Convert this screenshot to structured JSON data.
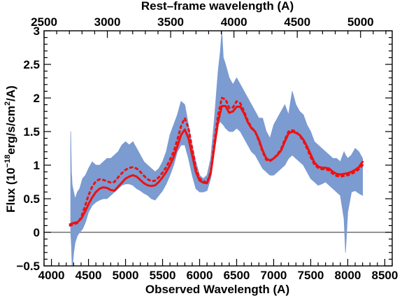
{
  "chart_data": {
    "type": "line",
    "title": "",
    "xlabel": "Observed Wavelength (A)",
    "x2label": "Rest–frame wavelength (A)",
    "ylabel_parts": {
      "pre": "Flux (10",
      "exp": "−18",
      "mid": "erg/s/cm",
      "exp2": "2",
      "post": "/A)"
    },
    "xlim": [
      3900,
      8600
    ],
    "ylim": [
      -0.5,
      3.0
    ],
    "x2lim": [
      2500,
      5250
    ],
    "x_ticks": [
      4000,
      4500,
      5000,
      5500,
      6000,
      6500,
      7000,
      7500,
      8000,
      8500
    ],
    "x_tick_labels": [
      "4000",
      "4500",
      "5000",
      "5500",
      "6000",
      "6500",
      "7000",
      "7500",
      "8000",
      "8500"
    ],
    "x_minor_step": 100,
    "x2_ticks": [
      2500,
      3000,
      3500,
      4000,
      4500,
      5000
    ],
    "x2_tick_labels": [
      "2500",
      "3000",
      "3500",
      "4000",
      "4500",
      "5000"
    ],
    "x2_minor_step": 100,
    "y_ticks": [
      -0.5,
      0,
      0.5,
      1,
      1.5,
      2,
      2.5,
      3
    ],
    "y_tick_labels": [
      "−0.5",
      "0",
      "0.5",
      "1",
      "1.5",
      "2",
      "2.5",
      "3"
    ],
    "y_minor_step": 0.1,
    "hline": 0,
    "colors": {
      "spectrum": "#7b9bd1",
      "model": "#ee1111",
      "axis": "#000000",
      "zero_line": "#555555"
    },
    "series": [
      {
        "style": "band",
        "x": [
          4260,
          4270,
          4280,
          4300,
          4320,
          4350,
          4380,
          4420,
          4460,
          4500,
          4550,
          4600,
          4650,
          4700,
          4750,
          4800,
          4850,
          4900,
          4950,
          5000,
          5050,
          5100,
          5150,
          5200,
          5250,
          5300,
          5350,
          5400,
          5450,
          5500,
          5550,
          5600,
          5650,
          5700,
          5750,
          5800,
          5850,
          5900,
          5950,
          6000,
          6050,
          6100,
          6150,
          6200,
          6250,
          6280,
          6300,
          6320,
          6350,
          6400,
          6450,
          6500,
          6550,
          6600,
          6650,
          6700,
          6750,
          6800,
          6850,
          6900,
          6950,
          7000,
          7050,
          7100,
          7150,
          7200,
          7250,
          7300,
          7350,
          7400,
          7450,
          7500,
          7550,
          7600,
          7650,
          7700,
          7750,
          7800,
          7850,
          7900,
          7950,
          7970,
          8000,
          8050,
          8100,
          8150,
          8200
        ],
        "lower": [
          0.0,
          -0.2,
          -0.55,
          -0.3,
          -0.15,
          -0.05,
          0.0,
          0.05,
          0.15,
          0.3,
          0.4,
          0.45,
          0.48,
          0.5,
          0.5,
          0.55,
          0.6,
          0.65,
          0.7,
          0.72,
          0.72,
          0.7,
          0.65,
          0.62,
          0.58,
          0.55,
          0.5,
          0.48,
          0.55,
          0.62,
          0.72,
          0.85,
          1.0,
          1.2,
          1.3,
          1.3,
          1.1,
          0.85,
          0.65,
          0.6,
          0.6,
          0.62,
          0.8,
          1.2,
          1.6,
          1.65,
          1.62,
          1.6,
          1.55,
          1.5,
          1.5,
          1.55,
          1.5,
          1.4,
          1.3,
          1.2,
          1.15,
          1.05,
          0.95,
          0.9,
          0.85,
          0.85,
          0.9,
          0.95,
          1.0,
          1.1,
          1.15,
          1.1,
          1.05,
          1.0,
          0.9,
          0.8,
          0.75,
          0.7,
          0.72,
          0.75,
          0.7,
          0.65,
          0.6,
          0.55,
          0.2,
          -0.3,
          0.3,
          0.6,
          0.62,
          0.58,
          0.55
        ],
        "upper": [
          1.5,
          0.9,
          0.7,
          0.6,
          0.5,
          0.6,
          0.65,
          0.8,
          0.85,
          0.95,
          1.05,
          1.0,
          1.0,
          1.05,
          1.1,
          1.1,
          1.15,
          1.2,
          1.3,
          1.35,
          1.3,
          1.35,
          1.25,
          1.15,
          1.05,
          1.0,
          0.95,
          0.9,
          0.95,
          1.05,
          1.2,
          1.45,
          1.6,
          1.75,
          1.95,
          1.9,
          1.6,
          1.3,
          1.05,
          0.85,
          0.8,
          0.85,
          1.1,
          1.7,
          2.4,
          2.7,
          3.0,
          2.6,
          2.5,
          2.3,
          2.2,
          2.3,
          2.2,
          2.1,
          2.0,
          1.9,
          1.8,
          1.7,
          1.7,
          1.5,
          1.4,
          1.6,
          1.7,
          1.8,
          1.9,
          1.75,
          2.1,
          1.9,
          1.8,
          1.75,
          1.6,
          1.5,
          1.35,
          1.3,
          1.25,
          1.2,
          1.15,
          1.1,
          1.1,
          1.05,
          1.2,
          1.15,
          1.1,
          1.15,
          1.25,
          1.2,
          1.1
        ]
      },
      {
        "style": "solid",
        "x": [
          4250,
          4300,
          4350,
          4400,
          4450,
          4500,
          4550,
          4600,
          4650,
          4700,
          4750,
          4800,
          4850,
          4900,
          4950,
          5000,
          5050,
          5100,
          5150,
          5200,
          5250,
          5300,
          5350,
          5400,
          5450,
          5500,
          5550,
          5600,
          5650,
          5700,
          5750,
          5800,
          5850,
          5900,
          5950,
          6000,
          6050,
          6100,
          6150,
          6200,
          6250,
          6300,
          6350,
          6400,
          6450,
          6500,
          6550,
          6600,
          6650,
          6700,
          6750,
          6800,
          6850,
          6900,
          6950,
          7000,
          7050,
          7100,
          7150,
          7200,
          7250,
          7300,
          7350,
          7400,
          7450,
          7500,
          7550,
          7600,
          7650,
          7700,
          7750,
          7800,
          7850,
          7900,
          7950,
          8000,
          8050,
          8100,
          8150,
          8200
        ],
        "y": [
          0.12,
          0.14,
          0.15,
          0.2,
          0.3,
          0.42,
          0.52,
          0.6,
          0.65,
          0.67,
          0.66,
          0.63,
          0.62,
          0.68,
          0.74,
          0.8,
          0.83,
          0.85,
          0.83,
          0.78,
          0.73,
          0.7,
          0.69,
          0.7,
          0.75,
          0.82,
          0.9,
          1.0,
          1.12,
          1.28,
          1.45,
          1.53,
          1.4,
          1.15,
          0.9,
          0.77,
          0.74,
          0.73,
          0.88,
          1.28,
          1.65,
          1.88,
          1.88,
          1.78,
          1.8,
          1.87,
          1.87,
          1.77,
          1.64,
          1.55,
          1.5,
          1.38,
          1.22,
          1.1,
          1.07,
          1.1,
          1.15,
          1.22,
          1.35,
          1.47,
          1.5,
          1.48,
          1.45,
          1.38,
          1.28,
          1.16,
          1.04,
          0.98,
          0.96,
          0.96,
          0.95,
          0.9,
          0.87,
          0.86,
          0.87,
          0.88,
          0.9,
          0.93,
          0.97,
          1.05
        ]
      },
      {
        "style": "dotted",
        "x": [
          4250,
          4300,
          4350,
          4400,
          4450,
          4500,
          4550,
          4600,
          4650,
          4700,
          4750,
          4800,
          4850,
          4900,
          4950,
          5000,
          5050,
          5100,
          5150,
          5200,
          5250,
          5300,
          5350,
          5400,
          5450,
          5500,
          5550,
          5600,
          5650,
          5700,
          5750,
          5800,
          5850,
          5900,
          5950,
          6000,
          6050,
          6100,
          6150,
          6200,
          6250,
          6300,
          6350,
          6400,
          6450,
          6500,
          6550,
          6600,
          6650,
          6700,
          6750,
          6800,
          6850,
          6900,
          6950,
          7000,
          7050,
          7100,
          7150,
          7200,
          7250,
          7300,
          7350,
          7400,
          7450,
          7500,
          7550,
          7600,
          7650,
          7700,
          7750,
          7800,
          7850,
          7900,
          7950,
          8000,
          8050,
          8100,
          8150,
          8200
        ],
        "y": [
          0.1,
          0.12,
          0.14,
          0.22,
          0.38,
          0.55,
          0.68,
          0.76,
          0.79,
          0.78,
          0.76,
          0.74,
          0.75,
          0.82,
          0.88,
          0.93,
          0.96,
          0.97,
          0.95,
          0.9,
          0.84,
          0.79,
          0.76,
          0.77,
          0.82,
          0.89,
          0.97,
          1.08,
          1.2,
          1.38,
          1.58,
          1.7,
          1.55,
          1.25,
          0.95,
          0.8,
          0.76,
          0.74,
          0.9,
          1.35,
          1.75,
          2.0,
          1.98,
          1.85,
          1.86,
          1.95,
          1.92,
          1.8,
          1.66,
          1.56,
          1.5,
          1.36,
          1.2,
          1.08,
          1.06,
          1.1,
          1.16,
          1.24,
          1.38,
          1.5,
          1.52,
          1.5,
          1.44,
          1.36,
          1.25,
          1.12,
          1.01,
          0.96,
          0.94,
          0.94,
          0.92,
          0.87,
          0.84,
          0.83,
          0.84,
          0.85,
          0.87,
          0.9,
          0.94,
          1.0
        ]
      }
    ]
  }
}
